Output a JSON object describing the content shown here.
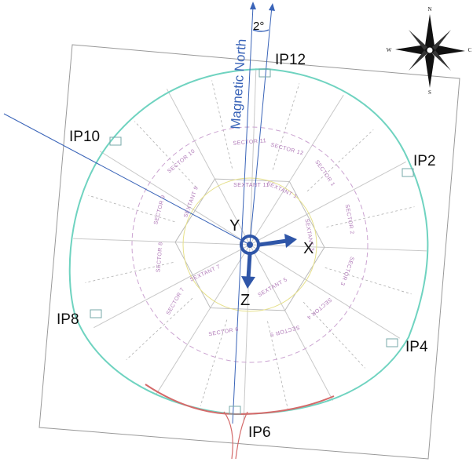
{
  "north": {
    "label": "Magnetic North",
    "angle": "2°"
  },
  "axes": {
    "x": "X",
    "y": "Y",
    "z": "Z"
  },
  "interaction_points": [
    "IP12",
    "IP10",
    "IP2",
    "IP8",
    "IP4",
    "IP6"
  ],
  "sectors": [
    "SECTOR 1",
    "SECTOR 2",
    "SECTOR 3",
    "SECTOR 4",
    "SECTOR 5",
    "SECTOR 6",
    "SECTOR 7",
    "SECTOR 8",
    "SECTOR 9",
    "SECTOR 10",
    "SECTOR 11",
    "SECTOR 12"
  ],
  "sextants": [
    "SEXTANT 1",
    "SEXTANT 3",
    "SEXTANT 5",
    "SEXTANT 7",
    "SEXTANT 9",
    "SEXTANT 11"
  ],
  "compass": {
    "n": "N",
    "w": "W",
    "s": "S",
    "e": "C"
  }
}
